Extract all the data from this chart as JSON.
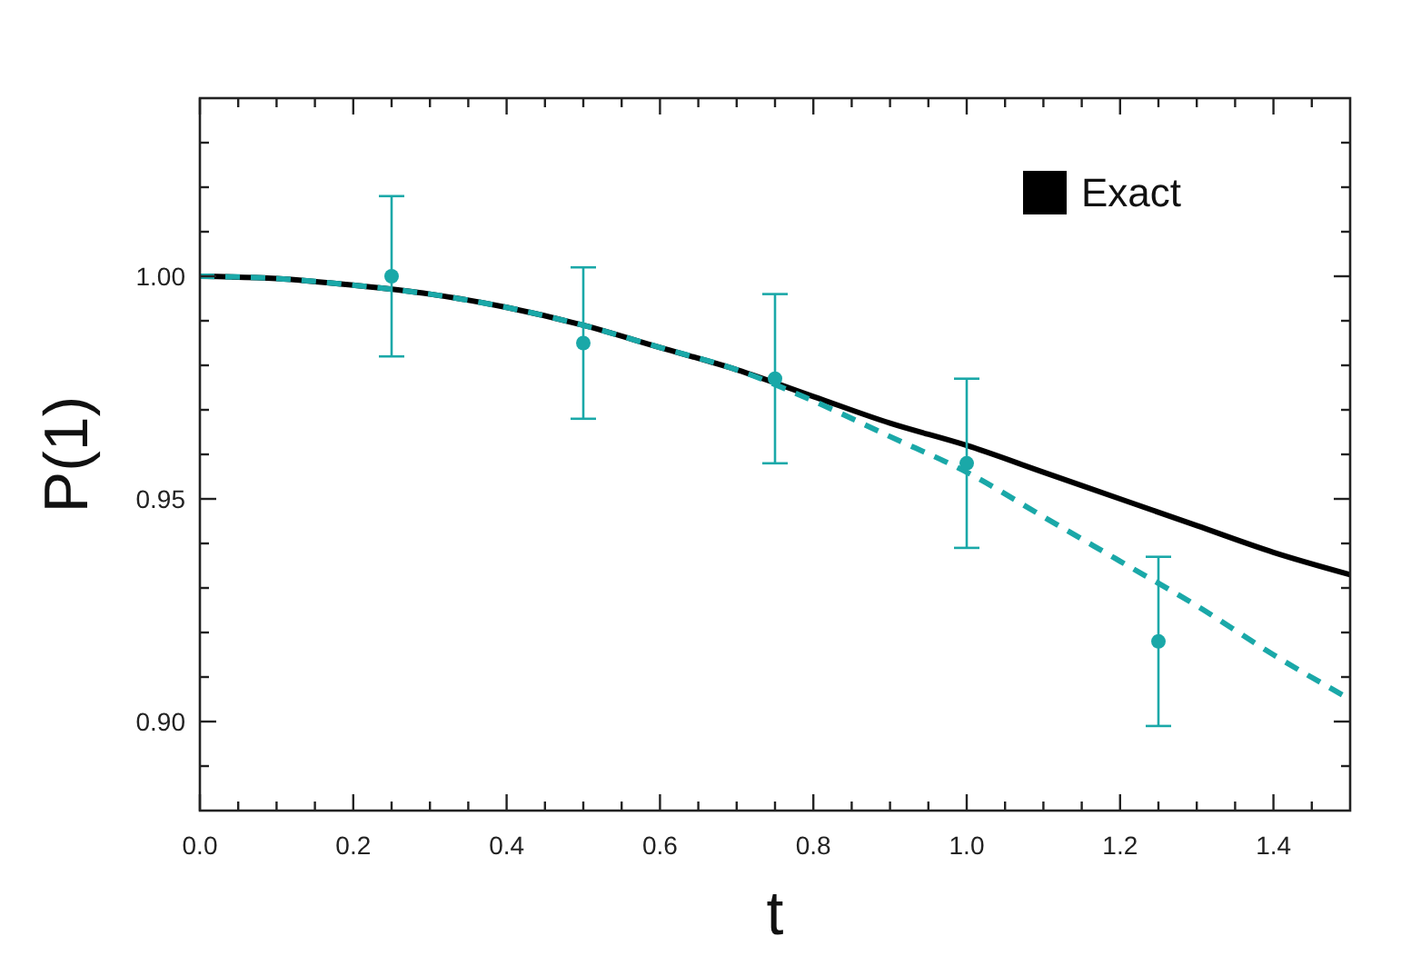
{
  "chart_data": {
    "type": "line",
    "xlabel": "t",
    "ylabel": "P(1)",
    "xlim": [
      0,
      1.5
    ],
    "ylim": [
      0.88,
      1.04
    ],
    "xticks": [
      {
        "value": 0,
        "label": "0.0"
      },
      {
        "value": 0.05,
        "label": null
      },
      {
        "value": 0.1,
        "label": null
      },
      {
        "value": 0.15,
        "label": null
      },
      {
        "value": 0.2,
        "label": "0.2"
      },
      {
        "value": 0.25,
        "label": null
      },
      {
        "value": 0.3,
        "label": null
      },
      {
        "value": 0.35,
        "label": null
      },
      {
        "value": 0.4,
        "label": "0.4"
      },
      {
        "value": 0.45,
        "label": null
      },
      {
        "value": 0.5,
        "label": null
      },
      {
        "value": 0.55,
        "label": null
      },
      {
        "value": 0.6,
        "label": "0.6"
      },
      {
        "value": 0.65,
        "label": null
      },
      {
        "value": 0.7,
        "label": null
      },
      {
        "value": 0.75,
        "label": null
      },
      {
        "value": 0.8,
        "label": "0.8"
      },
      {
        "value": 0.85,
        "label": null
      },
      {
        "value": 0.9,
        "label": null
      },
      {
        "value": 0.95,
        "label": null
      },
      {
        "value": 1,
        "label": "1.0"
      },
      {
        "value": 1.05,
        "label": null
      },
      {
        "value": 1.1,
        "label": null
      },
      {
        "value": 1.15,
        "label": null
      },
      {
        "value": 1.2,
        "label": "1.2"
      },
      {
        "value": 1.25,
        "label": null
      },
      {
        "value": 1.3,
        "label": null
      },
      {
        "value": 1.35,
        "label": null
      },
      {
        "value": 1.4,
        "label": "1.4"
      },
      {
        "value": 1.45,
        "label": null
      }
    ],
    "yticks": [
      {
        "value": 0.89,
        "label": null
      },
      {
        "value": 0.9,
        "label": "0.90"
      },
      {
        "value": 0.91,
        "label": null
      },
      {
        "value": 0.92,
        "label": null
      },
      {
        "value": 0.93,
        "label": null
      },
      {
        "value": 0.94,
        "label": null
      },
      {
        "value": 0.95,
        "label": "0.95"
      },
      {
        "value": 0.96,
        "label": null
      },
      {
        "value": 0.97,
        "label": null
      },
      {
        "value": 0.98,
        "label": null
      },
      {
        "value": 0.99,
        "label": null
      },
      {
        "value": 1,
        "label": "1.00"
      },
      {
        "value": 1.01,
        "label": null
      },
      {
        "value": 1.02,
        "label": null
      },
      {
        "value": 1.03,
        "label": null
      }
    ],
    "legend": "top right",
    "series": [
      {
        "name": "Exact",
        "type": "line",
        "color": "#000000",
        "line_style": "solid",
        "x": [
          0,
          0.1,
          0.2,
          0.3,
          0.4,
          0.5,
          0.6,
          0.7,
          0.8,
          0.9,
          1.0,
          1.1,
          1.2,
          1.3,
          1.4,
          1.5
        ],
        "values": [
          1.0,
          0.9995,
          0.998,
          0.996,
          0.993,
          0.989,
          0.984,
          0.979,
          0.973,
          0.967,
          0.962,
          0.956,
          0.95,
          0.944,
          0.938,
          0.933
        ]
      },
      {
        "type": "line",
        "color": "#1aa8a8",
        "line_style": "dashed",
        "x": [
          0,
          0.1,
          0.2,
          0.3,
          0.4,
          0.5,
          0.6,
          0.7,
          0.8,
          0.9,
          1.0,
          1.1,
          1.2,
          1.3,
          1.4,
          1.5
        ],
        "values": [
          1.0,
          0.9995,
          0.998,
          0.996,
          0.993,
          0.989,
          0.984,
          0.979,
          0.972,
          0.964,
          0.956,
          0.946,
          0.936,
          0.926,
          0.915,
          0.905
        ]
      },
      {
        "type": "scatter",
        "color": "#1aa8a8",
        "marker": "circle",
        "x": [
          0.25,
          0.5,
          0.75,
          1.0,
          1.25
        ],
        "values": [
          1.0,
          0.985,
          0.977,
          0.958,
          0.918
        ],
        "errors": [
          0.018,
          0.017,
          0.019,
          0.019,
          0.019
        ]
      }
    ]
  }
}
